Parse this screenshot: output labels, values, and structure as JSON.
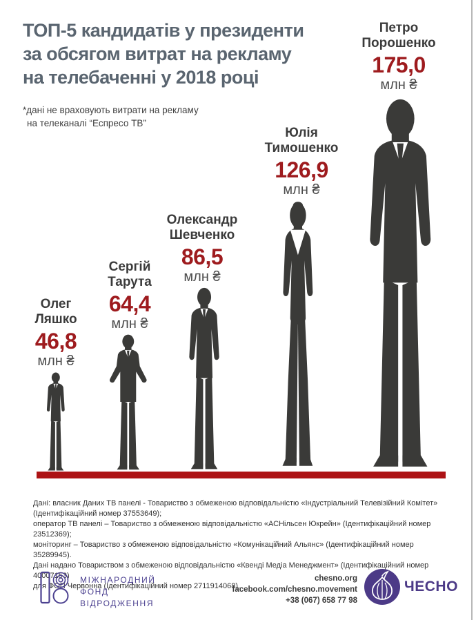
{
  "colors": {
    "title": "#5a6570",
    "name_text": "#3b3b3b",
    "value_red": "#9e1b1e",
    "baseline_red": "#ad1315",
    "silhouette": "#3a3a38",
    "source_text": "#333333",
    "footer_purple": "#4c4190",
    "chesno_purple": "#4c3a87"
  },
  "header": {
    "title_lines": [
      "ТОП-5 кандидатів у президенти",
      "за обсягом витрат на рекламу",
      "на телебаченні у 2018 році"
    ],
    "footnote_lines": [
      "*дані не враховують витрати на рекламу",
      "на телеканалі “Еспресо ТВ”"
    ]
  },
  "chart_data": {
    "type": "bar",
    "title": "ТОП-5 кандидатів у президенти за обсягом витрат на рекламу на телебаченні у 2018 році",
    "note": "*дані не враховують витрати на рекламу на телеканалі “Еспресо ТВ”",
    "unit": "млн ₴",
    "categories": [
      "Олег Ляшко",
      "Сергій Тарута",
      "Олександр Шевченко",
      "Юлія Тимошенко",
      "Петро Порошенко"
    ],
    "values": [
      46.8,
      64.4,
      86.5,
      126.9,
      175.0
    ],
    "value_labels": [
      "46,8",
      "64,4",
      "86,5",
      "126,9",
      "175,0"
    ],
    "ylim": [
      0,
      175
    ],
    "legend_position": "none",
    "grid": false
  },
  "candidates": [
    {
      "name_lines": [
        "Олег",
        "Ляшко"
      ],
      "value_label": "46,8",
      "unit": "млн ₴"
    },
    {
      "name_lines": [
        "Сергій",
        "Тарута"
      ],
      "value_label": "64,4",
      "unit": "млн ₴"
    },
    {
      "name_lines": [
        "Олександр",
        "Шевченко"
      ],
      "value_label": "86,5",
      "unit": "млн ₴"
    },
    {
      "name_lines": [
        "Юлія",
        "Тимошенко"
      ],
      "value_label": "126,9",
      "unit": "млн ₴"
    },
    {
      "name_lines": [
        "Петро",
        "Порошенко"
      ],
      "value_label": "175,0",
      "unit": "млн ₴"
    }
  ],
  "source": {
    "lines": [
      "Дані: власник Даних ТВ панелі - Товариство з обмеженою відповідальністю «Індустріальний Телевізійний Комітет»",
      "(Ідентифікаційний номер 37553649);",
      "оператор ТВ панелі – Товариство з обмеженою відповідальністю «АСНільсен Юкрейн» (Ідентифікаційний номер 23512369);",
      "моніторинг – Товариство з обмеженою відповідальністю «Комунікаційний Альянс» (Ідентифікаційний номер 35289945).",
      "Дані надано Товариством з обмеженою відповідальністю «Квенді Медіа Менеджмент» (Ідентифікаційний номер 40007153)",
      "для ФОП Червонна (Ідентифікаційний номер 2711914068)."
    ]
  },
  "footer": {
    "irf_lines": [
      "МІЖНАРОДНИЙ",
      "ФОНД",
      "ВІДРОДЖЕННЯ"
    ],
    "contact_lines": [
      "chesno.org",
      "facebook.com/chesno.movement",
      "+38 (067) 658 77 98"
    ],
    "chesno_label": "ЧЕСНО"
  }
}
